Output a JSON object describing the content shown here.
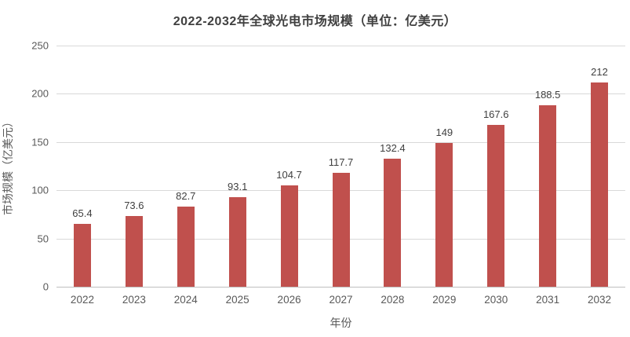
{
  "chart_data": {
    "type": "bar",
    "title": "2022-2032年全球光电市场规模（单位：亿美元）",
    "xlabel": "年份",
    "ylabel": "市场规模（亿美元）",
    "categories": [
      "2022",
      "2023",
      "2024",
      "2025",
      "2026",
      "2027",
      "2028",
      "2029",
      "2030",
      "2031",
      "2032"
    ],
    "values": [
      65.4,
      73.6,
      82.7,
      93.1,
      104.7,
      117.7,
      132.4,
      149,
      167.6,
      188.5,
      212
    ],
    "value_labels": [
      "65.4",
      "73.6",
      "82.7",
      "93.1",
      "104.7",
      "117.7",
      "132.4",
      "149",
      "167.6",
      "188.5",
      "212"
    ],
    "ylim": [
      0,
      250
    ],
    "yticks": [
      0,
      50,
      100,
      150,
      200,
      250
    ],
    "grid": "horizontal",
    "legend": "none",
    "colors": {
      "bar": "#c0504d",
      "gridline": "#d9d9d9",
      "axis_line": "#bfbfbf",
      "title_text": "#404040",
      "tick_text": "#595959",
      "value_label_text": "#404040",
      "background": "#ffffff"
    }
  }
}
